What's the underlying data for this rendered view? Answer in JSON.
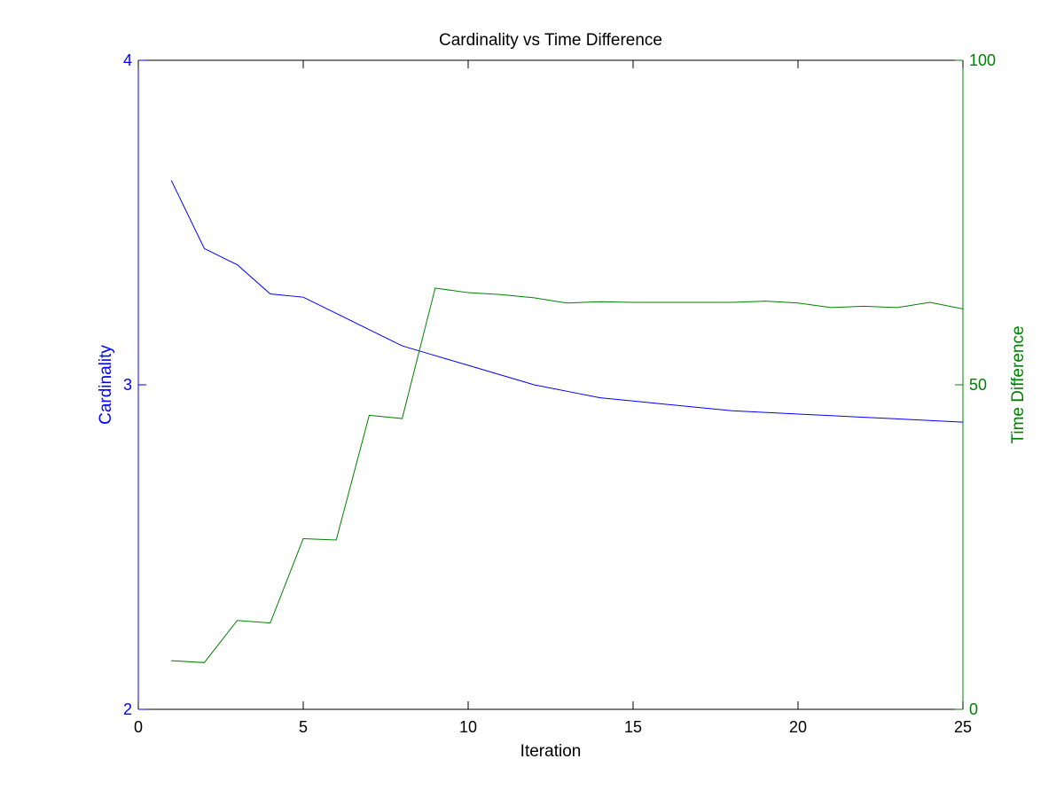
{
  "chart_data": {
    "type": "line",
    "title": "Cardinality vs Time Difference",
    "xlabel": "Iteration",
    "ylabel_left": "Cardinality",
    "ylabel_right": "Time Difference",
    "xlim": [
      0,
      25
    ],
    "ylim_left": [
      2,
      4
    ],
    "ylim_right": [
      0,
      100
    ],
    "xticks": [
      0,
      5,
      10,
      15,
      20,
      25
    ],
    "yticks_left": [
      2,
      3,
      4
    ],
    "yticks_right": [
      0,
      50,
      100
    ],
    "grid": false,
    "x": [
      1,
      2,
      3,
      4,
      5,
      6,
      7,
      8,
      9,
      10,
      11,
      12,
      13,
      14,
      15,
      16,
      17,
      18,
      19,
      20,
      21,
      22,
      23,
      24,
      25
    ],
    "series": [
      {
        "name": "Cardinality",
        "axis": "left",
        "color": "#0000ff",
        "values": [
          3.63,
          3.42,
          3.37,
          3.28,
          3.27,
          3.22,
          3.17,
          3.12,
          3.09,
          3.06,
          3.03,
          3.0,
          2.98,
          2.96,
          2.95,
          2.94,
          2.93,
          2.92,
          2.915,
          2.91,
          2.905,
          2.9,
          2.895,
          2.89,
          2.885
        ]
      },
      {
        "name": "Time Difference",
        "axis": "right",
        "color": "#008000",
        "values": [
          7.5,
          7.2,
          13.7,
          13.3,
          26.3,
          26.1,
          45.3,
          44.8,
          64.9,
          64.2,
          63.9,
          63.4,
          62.6,
          62.8,
          62.7,
          62.7,
          62.7,
          62.7,
          62.9,
          62.6,
          61.9,
          62.1,
          61.9,
          62.7,
          61.7
        ]
      }
    ],
    "colors": {
      "left_axis": "#0000ff",
      "right_axis": "#008000",
      "x_axis": "#000000"
    }
  }
}
